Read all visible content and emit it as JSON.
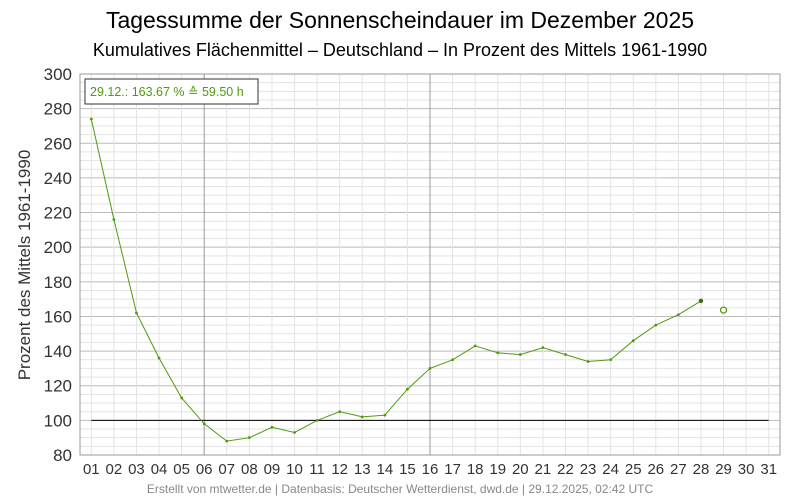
{
  "title": "Tagessumme der Sonnenscheindauer im Dezember 2025",
  "subtitle": "Kumulatives Flächenmittel – Deutschland – In Prozent des Mittels 1961-1990",
  "footer": "Erstellt von mtwetter.de | Datenbasis: Deutscher Wetterdienst, dwd.de | 29.12.2025, 02:42 UTC",
  "annotation": "29.12.: 163.67 % ≙ 59.50 h",
  "colors": {
    "series": "#4f9a10",
    "reference_line": "#000000",
    "grid_major": "#bbbbbb",
    "grid_minor": "#e3e3e3",
    "grid_day_major": "#999999"
  },
  "chart_data": {
    "type": "line",
    "title": "Tagessumme der Sonnenscheindauer im Dezember 2025",
    "subtitle": "Kumulatives Flächenmittel – Deutschland – In Prozent des Mittels 1961-1990",
    "xlabel": "",
    "ylabel": "Prozent des Mittels 1961-1990",
    "ylim": [
      80,
      300
    ],
    "yticks": [
      80,
      100,
      120,
      140,
      160,
      180,
      200,
      220,
      240,
      260,
      280,
      300
    ],
    "xlim": [
      0.5,
      31.5
    ],
    "x_tick_labels": [
      "01",
      "02",
      "03",
      "04",
      "05",
      "06",
      "07",
      "08",
      "09",
      "10",
      "11",
      "12",
      "13",
      "14",
      "15",
      "16",
      "17",
      "18",
      "19",
      "20",
      "21",
      "22",
      "23",
      "24",
      "25",
      "26",
      "27",
      "28",
      "29",
      "30",
      "31"
    ],
    "grid": true,
    "reference_value": 100,
    "series": [
      {
        "x": [
          1,
          2,
          3,
          4,
          5,
          6,
          7,
          8,
          9,
          10,
          11,
          12,
          13,
          14,
          15,
          16,
          17,
          18,
          19,
          20,
          21,
          22,
          23,
          24,
          25,
          26,
          27,
          28
        ],
        "values": [
          274,
          216,
          162,
          136,
          113,
          98,
          88,
          90,
          96,
          93,
          100,
          105,
          102,
          103,
          118,
          130,
          135,
          143,
          139,
          138,
          142,
          138,
          134,
          135,
          146,
          155,
          161,
          169
        ]
      }
    ],
    "highlight_point": {
      "x": 29,
      "value": 163.67,
      "hours": 59.5
    }
  }
}
